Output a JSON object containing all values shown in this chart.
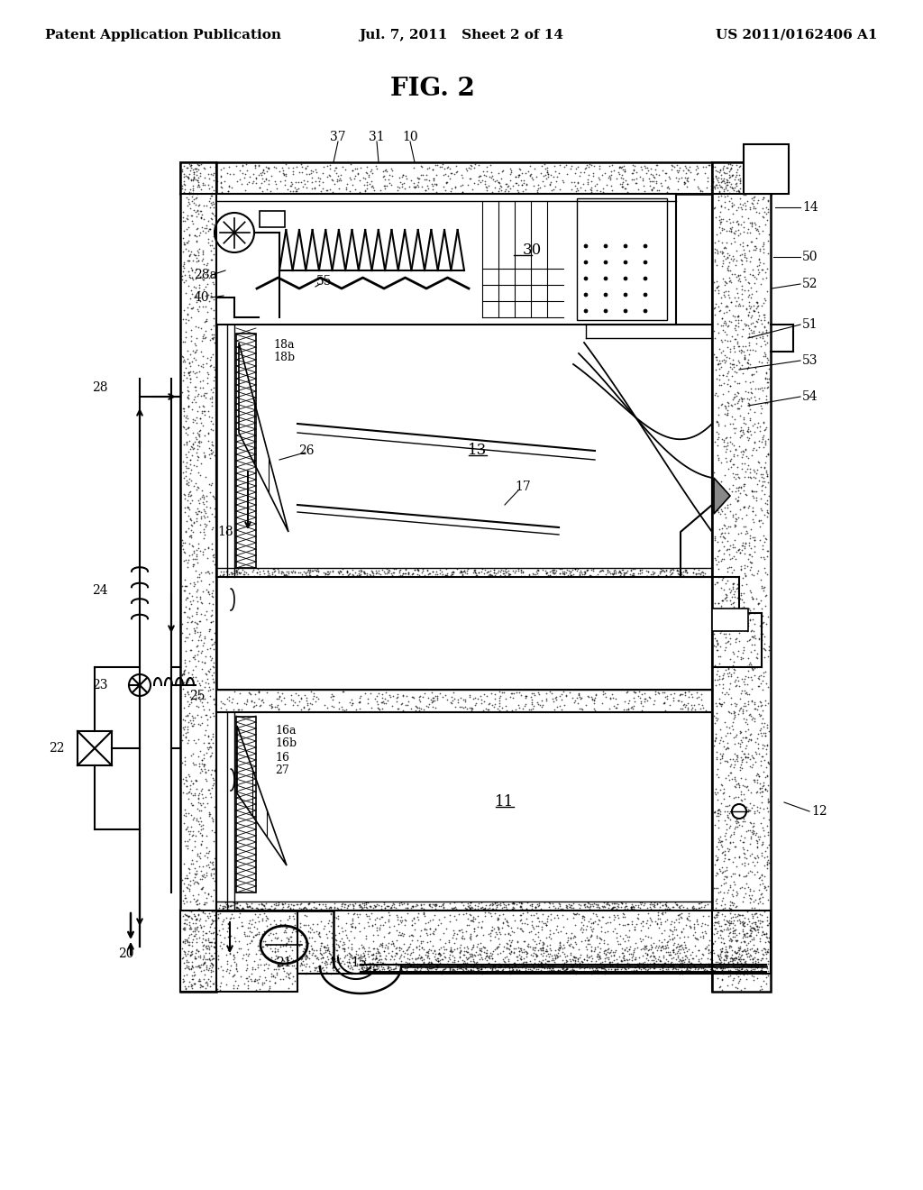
{
  "title": "FIG. 2",
  "header_left": "Patent Application Publication",
  "header_center": "Jul. 7, 2011   Sheet 2 of 14",
  "header_right": "US 2011/0162406 A1",
  "bg_color": "#ffffff",
  "line_color": "#000000",
  "fig_title_fontsize": 20,
  "header_fontsize": 11,
  "label_fontsize": 10,
  "small_label_fontsize": 9
}
